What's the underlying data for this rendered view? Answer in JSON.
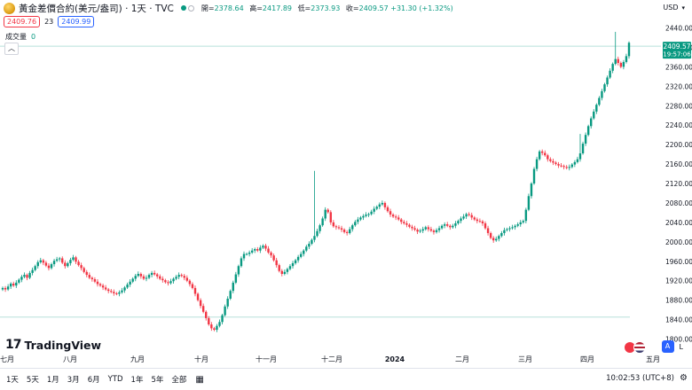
{
  "legend": {
    "symbol": "黃金差價合約(美元/盎司) · 1天 · TVC",
    "open_label": "開=",
    "open": "2378.64",
    "high_label": "高=",
    "high": "2417.89",
    "low_label": "低=",
    "low": "2373.93",
    "close_label": "收=",
    "close_change": "2409.57 +31.30 (+1.32%)",
    "bid": "2409.76",
    "spread": "23",
    "ask": "2409.99"
  },
  "volume": {
    "label": "成交量",
    "value": "0"
  },
  "currency": "USD",
  "price_tag": {
    "price": "2409.57",
    "countdown": "19:57:06"
  },
  "brand": "TradingView",
  "bottom": {
    "ranges": [
      "1天",
      "5天",
      "1月",
      "3月",
      "6月",
      "YTD",
      "1年",
      "5年",
      "全部"
    ],
    "time": "10:02:53 (UTC+8)"
  },
  "scale_buttons": {
    "auto": "A",
    "log": "L"
  },
  "colors": {
    "up": "#089981",
    "down": "#f23645",
    "accent": "#2962ff"
  },
  "icons": [
    "gold-coin-icon",
    "calendar-icon",
    "settings-icon",
    "collapse-chevron-icon",
    "chevron-down-icon"
  ],
  "chart_data": {
    "type": "candlestick",
    "y_axis_ticks": [
      1800,
      1840,
      1880,
      1920,
      1960,
      2000,
      2040,
      2080,
      2120,
      2160,
      2200,
      2240,
      2280,
      2320,
      2360,
      2400,
      2440
    ],
    "y_axis_labels": [
      "1800.00",
      "1840.00",
      "1880.00",
      "1920.00",
      "1960.00",
      "2000.00",
      "2040.00",
      "2080.00",
      "2120.00",
      "2160.00",
      "2200.00",
      "2240.00",
      "2280.00",
      "2320.00",
      "2360.00",
      "2400.00",
      "2440.00"
    ],
    "ylim": [
      1779,
      2472
    ],
    "x_axis_labels": [
      "七月",
      "八月",
      "九月",
      "十月",
      "十一月",
      "十二月",
      "2024",
      "二月",
      "三月",
      "四月",
      "五月"
    ],
    "x_range": [
      "2023-07-01",
      "2024-05-01"
    ],
    "horizontal_lines": [
      2402.5,
      1845
    ],
    "closes": [
      1905,
      1902,
      1908,
      1914,
      1910,
      1916,
      1922,
      1928,
      1932,
      1926,
      1936,
      1942,
      1950,
      1958,
      1962,
      1957,
      1951,
      1946,
      1954,
      1961,
      1964,
      1966,
      1957,
      1950,
      1956,
      1963,
      1968,
      1959,
      1952,
      1946,
      1938,
      1932,
      1926,
      1923,
      1918,
      1913,
      1910,
      1906,
      1902,
      1899,
      1897,
      1894,
      1893,
      1896,
      1900,
      1906,
      1912,
      1918,
      1924,
      1930,
      1934,
      1929,
      1924,
      1926,
      1932,
      1936,
      1933,
      1929,
      1924,
      1921,
      1917,
      1915,
      1919,
      1924,
      1928,
      1932,
      1930,
      1926,
      1920,
      1913,
      1905,
      1893,
      1880,
      1868,
      1856,
      1843,
      1830,
      1822,
      1819,
      1827,
      1835,
      1849,
      1867,
      1883,
      1899,
      1916,
      1933,
      1950,
      1966,
      1975,
      1975,
      1978,
      1982,
      1985,
      1982,
      1988,
      1992,
      1986,
      1978,
      1972,
      1962,
      1952,
      1940,
      1934,
      1938,
      1944,
      1950,
      1956,
      1962,
      1969,
      1975,
      1982,
      1990,
      1996,
      2004,
      2012,
      2022,
      2034,
      2048,
      2066,
      2061,
      2040,
      2032,
      2030,
      2028,
      2025,
      2020,
      2018,
      2026,
      2034,
      2041,
      2046,
      2050,
      2053,
      2056,
      2057,
      2062,
      2068,
      2072,
      2077,
      2080,
      2071,
      2063,
      2056,
      2052,
      2050,
      2046,
      2041,
      2038,
      2035,
      2031,
      2028,
      2025,
      2021,
      2023,
      2026,
      2030,
      2026,
      2023,
      2020,
      2024,
      2028,
      2033,
      2036,
      2033,
      2030,
      2033,
      2038,
      2043,
      2048,
      2052,
      2057,
      2055,
      2050,
      2046,
      2043,
      2042,
      2038,
      2028,
      2018,
      2008,
      2003,
      2006,
      2012,
      2018,
      2024,
      2026,
      2028,
      2030,
      2033,
      2036,
      2040,
      2043,
      2066,
      2094,
      2120,
      2150,
      2170,
      2186,
      2183,
      2178,
      2170,
      2166,
      2163,
      2160,
      2157,
      2156,
      2154,
      2152,
      2154,
      2159,
      2164,
      2170,
      2182,
      2202,
      2220,
      2238,
      2254,
      2268,
      2282,
      2296,
      2310,
      2324,
      2338,
      2352,
      2366,
      2376,
      2368,
      2360,
      2370,
      2382,
      2409.57
    ]
  }
}
